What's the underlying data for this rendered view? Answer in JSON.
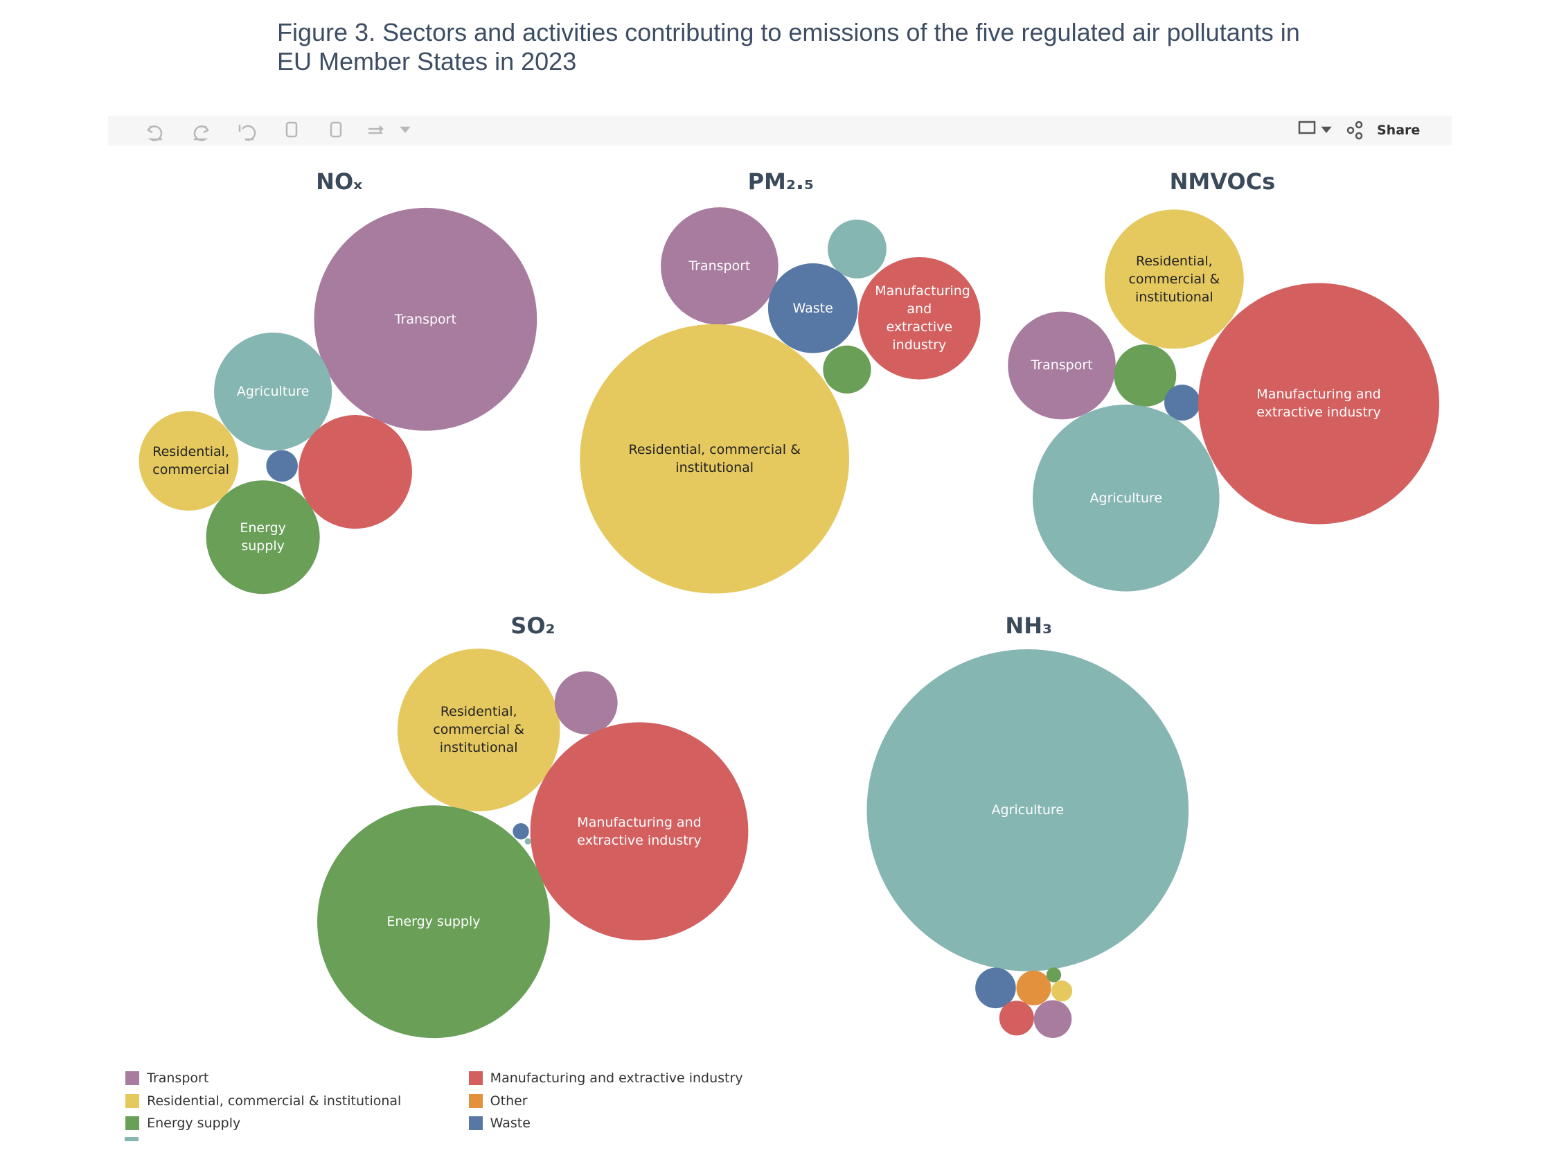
{
  "header": {
    "title": "Figure 3. Sectors and activities contributing to emissions of the five regulated air pollutants in EU Member States in 2023"
  },
  "toolbar": {
    "share": "Share"
  },
  "legend": [
    {
      "name": "Transport",
      "color": "#a87c9f"
    },
    {
      "name": "Residential, commercial & institutional",
      "color": "#e5c95f"
    },
    {
      "name": "Energy supply",
      "color": "#6a9f58"
    },
    {
      "name": "Manufacturing and extractive industry",
      "color": "#d35f5f"
    },
    {
      "name": "Other",
      "color": "#e4913e"
    },
    {
      "name": "Waste",
      "color": "#5778a4"
    }
  ],
  "chart_data": [
    {
      "type": "bubble",
      "title": "NOₓ",
      "labels": [
        "Transport",
        "Agriculture",
        "Residential, commercial",
        null,
        null,
        "Energy supply"
      ],
      "values": [
        50,
        14,
        10,
        1,
        13,
        13
      ],
      "colors": [
        "#a87c9f",
        "#85b6b2",
        "#e5c95f",
        "#5778a4",
        "#d35f5f",
        "#6a9f58"
      ]
    },
    {
      "type": "bubble",
      "title": "PM₂.₅",
      "labels": [
        "Transport",
        null,
        "Waste",
        "Manufacturing and extractive industry",
        null,
        "Residential, commercial & institutional"
      ],
      "values": [
        12,
        3,
        7,
        13,
        2,
        63
      ],
      "colors": [
        "#a87c9f",
        "#85b6b2",
        "#5778a4",
        "#d35f5f",
        "#6a9f58",
        "#e5c95f"
      ]
    },
    {
      "type": "bubble",
      "title": "NMVOCs",
      "labels": [
        "Residential, commercial & institutional",
        "Transport",
        null,
        null,
        "Manufacturing and extractive industry",
        "Agriculture"
      ],
      "values": [
        15,
        9,
        3,
        1,
        45,
        27
      ],
      "colors": [
        "#e5c95f",
        "#a87c9f",
        "#6a9f58",
        "#5778a4",
        "#d35f5f",
        "#85b6b2"
      ]
    },
    {
      "type": "bubble",
      "title": "SO₂",
      "labels": [
        "Residential, commercial & institutional",
        null,
        "Manufacturing and extractive industry",
        null,
        null,
        "Energy supply"
      ],
      "values": [
        20,
        3,
        36,
        0.2,
        0.03,
        41
      ],
      "colors": [
        "#e5c95f",
        "#a87c9f",
        "#d35f5f",
        "#5778a4",
        "#85b6b2",
        "#6a9f58"
      ]
    },
    {
      "type": "bubble",
      "title": "NH₃",
      "labels": [
        "Agriculture",
        null,
        null,
        null,
        null,
        null,
        null
      ],
      "values": [
        94.4,
        1.5,
        1.1,
        0.2,
        0.4,
        1.1,
        1.3
      ],
      "colors": [
        "#85b6b2",
        "#5778a4",
        "#e4913e",
        "#6a9f58",
        "#e5c95f",
        "#d35f5f",
        "#a87c9f"
      ]
    }
  ]
}
